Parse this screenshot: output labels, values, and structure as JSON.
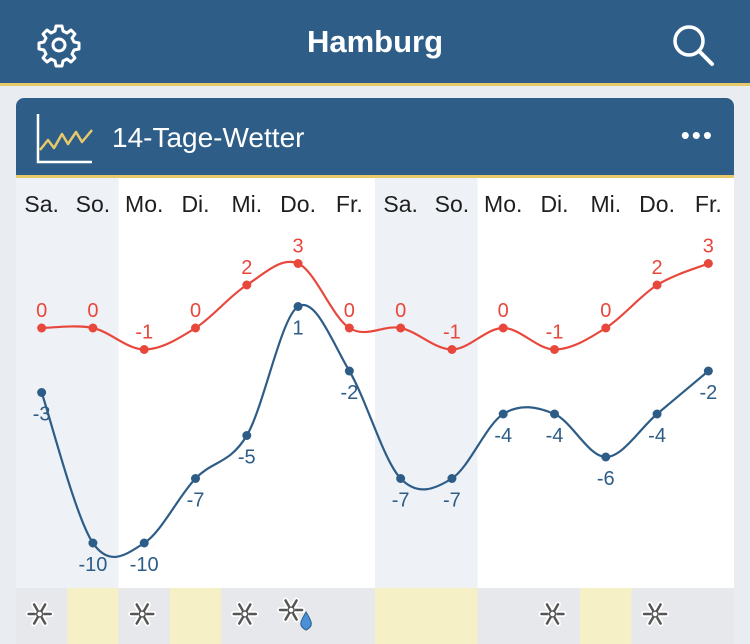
{
  "header": {
    "title": "Hamburg"
  },
  "card": {
    "title": "14-Tage-Wetter"
  },
  "chart_data": {
    "type": "line",
    "categories": [
      "Sa.",
      "So.",
      "Mo.",
      "Di.",
      "Mi.",
      "Do.",
      "Fr.",
      "Sa.",
      "So.",
      "Mo.",
      "Di.",
      "Mi.",
      "Do.",
      "Fr."
    ],
    "series": [
      {
        "values": [
          0,
          0,
          -1,
          0,
          2,
          3,
          0,
          0,
          -1,
          0,
          -1,
          0,
          2,
          3
        ],
        "color": "#e8473c"
      },
      {
        "values": [
          -3,
          -10,
          -10,
          -7,
          -5,
          1,
          -2,
          -7,
          -7,
          -4,
          -4,
          -6,
          -4,
          -2
        ],
        "color": "#2d5d87"
      }
    ],
    "grid": false,
    "weekend_shading": [
      0,
      1,
      7,
      8
    ],
    "weather_icons": [
      "snowflake-icon",
      "",
      "snowflake-icon",
      "",
      "snowflake-icon",
      "snow-rain-icon",
      "",
      "",
      "",
      "",
      "snowflake-icon",
      "",
      "snowflake-icon",
      ""
    ],
    "icon_row_highlight": [
      1,
      3,
      7,
      8,
      11
    ]
  }
}
